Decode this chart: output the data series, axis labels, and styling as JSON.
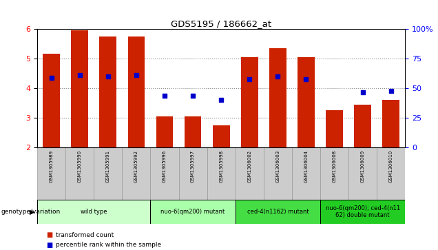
{
  "title": "GDS5195 / 186662_at",
  "samples": [
    "GSM1305989",
    "GSM1305990",
    "GSM1305991",
    "GSM1305992",
    "GSM1305996",
    "GSM1305997",
    "GSM1305998",
    "GSM1306002",
    "GSM1306003",
    "GSM1306004",
    "GSM1306008",
    "GSM1306009",
    "GSM1306010"
  ],
  "bar_values": [
    5.15,
    5.95,
    5.75,
    5.75,
    3.05,
    3.05,
    2.75,
    5.05,
    5.35,
    5.05,
    3.25,
    3.45,
    3.6
  ],
  "dot_positions": [
    0,
    1,
    2,
    3,
    4,
    5,
    6,
    7,
    8,
    9,
    11,
    12
  ],
  "dot_y_values": [
    4.35,
    4.45,
    4.4,
    4.45,
    3.75,
    3.75,
    3.6,
    4.3,
    4.4,
    4.3,
    3.85,
    3.9
  ],
  "ymin": 2.0,
  "ymax": 6.0,
  "yticks_left": [
    2,
    3,
    4,
    5,
    6
  ],
  "yticks_right": [
    0,
    25,
    50,
    75,
    100
  ],
  "bar_color": "#cc2200",
  "dot_color": "#0000cc",
  "groups": [
    {
      "label": "wild type",
      "start": 0,
      "end": 3,
      "color": "#ccffcc"
    },
    {
      "label": "nuo-6(qm200) mutant",
      "start": 4,
      "end": 6,
      "color": "#aaffaa"
    },
    {
      "label": "ced-4(n1162) mutant",
      "start": 7,
      "end": 9,
      "color": "#44dd44"
    },
    {
      "label": "nuo-6(qm200); ced-4(n11\n62) double mutant",
      "start": 10,
      "end": 12,
      "color": "#22cc22"
    }
  ],
  "genotype_label": "genotype/variation",
  "legend_bar": "transformed count",
  "legend_dot": "percentile rank within the sample",
  "bar_bottom": 2.0,
  "tick_bg_color": "#cccccc",
  "grid_color": "#888888"
}
